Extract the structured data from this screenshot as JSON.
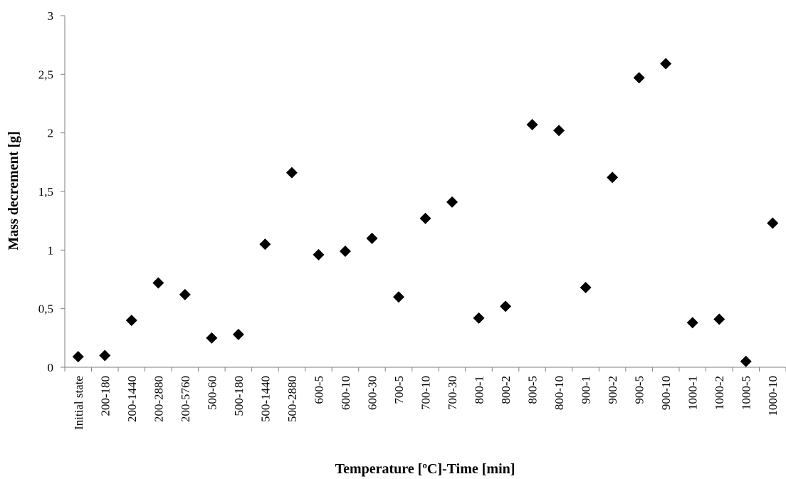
{
  "chart_data": {
    "type": "scatter",
    "title": "",
    "xlabel": "Temperature [ºC]-Time [min]",
    "ylabel": "Mass decrement [g]",
    "ylim": [
      0,
      3
    ],
    "yticks": [
      "0",
      "0,5",
      "1",
      "1,5",
      "2",
      "2,5",
      "3"
    ],
    "ytick_values": [
      0,
      0.5,
      1,
      1.5,
      2,
      2.5,
      3
    ],
    "grid": false,
    "legend": "none",
    "marker": "diamond",
    "marker_color": "#000000",
    "categories": [
      "Initial state",
      "200-180",
      "200-1440",
      "200-2880",
      "200-5760",
      "500-60",
      "500-180",
      "500-1440",
      "500-2880",
      "600-5",
      "600-10",
      "600-30",
      "700-5",
      "700-10",
      "700-30",
      "800-1",
      "800-2",
      "800-5",
      "800-10",
      "900-1",
      "900-2",
      "900-5",
      "900-10",
      "1000-1",
      "1000-2",
      "1000-5",
      "1000-10"
    ],
    "values": [
      0.09,
      0.1,
      0.4,
      0.72,
      0.62,
      0.25,
      0.28,
      1.05,
      1.66,
      0.96,
      0.99,
      1.1,
      0.6,
      1.27,
      1.41,
      0.42,
      0.52,
      2.07,
      2.02,
      0.68,
      1.62,
      2.47,
      2.59,
      0.38,
      0.41,
      0.05,
      1.23
    ]
  }
}
